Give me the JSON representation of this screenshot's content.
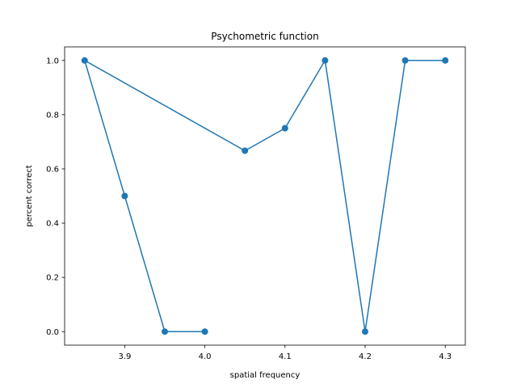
{
  "chart_data": {
    "type": "line",
    "title": "Psychometric function",
    "xlabel": "spatial frequency",
    "ylabel": "percent correct",
    "xlim": [
      3.825,
      4.325
    ],
    "ylim": [
      -0.05,
      1.05
    ],
    "x_ticks": [
      "3.9",
      "4.0",
      "4.1",
      "4.2",
      "4.3"
    ],
    "y_ticks": [
      "0.0",
      "0.2",
      "0.4",
      "0.6",
      "0.8",
      "1.0"
    ],
    "grid": false,
    "colors": {
      "series": "#1f77b4"
    },
    "series": [
      {
        "marker": "circle",
        "x": [
          4.0,
          3.95,
          3.9,
          3.85,
          4.05,
          4.1,
          4.15,
          4.2,
          4.25,
          4.3
        ],
        "y": [
          0.0,
          0.0,
          0.5,
          1.0,
          0.667,
          0.75,
          1.0,
          0.0,
          1.0,
          1.0
        ]
      }
    ]
  }
}
